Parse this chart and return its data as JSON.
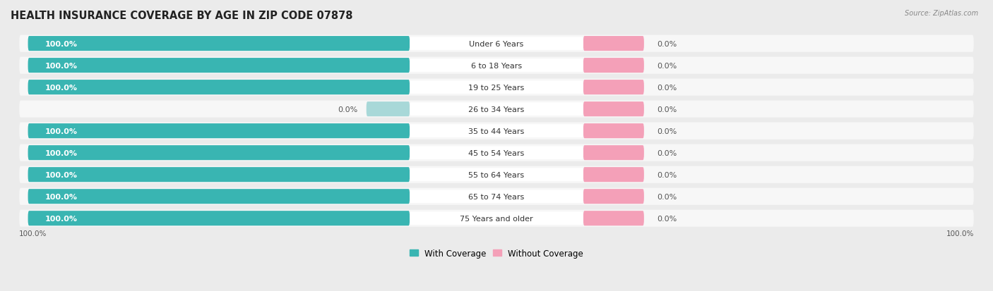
{
  "title": "HEALTH INSURANCE COVERAGE BY AGE IN ZIP CODE 07878",
  "source": "Source: ZipAtlas.com",
  "categories": [
    "Under 6 Years",
    "6 to 18 Years",
    "19 to 25 Years",
    "26 to 34 Years",
    "35 to 44 Years",
    "45 to 54 Years",
    "55 to 64 Years",
    "65 to 74 Years",
    "75 Years and older"
  ],
  "with_coverage": [
    100.0,
    100.0,
    100.0,
    0.0,
    100.0,
    100.0,
    100.0,
    100.0,
    100.0
  ],
  "without_coverage": [
    0.0,
    0.0,
    0.0,
    0.0,
    0.0,
    0.0,
    0.0,
    0.0,
    0.0
  ],
  "color_with": "#39b5b2",
  "color_with_light": "#a8d8d8",
  "color_without": "#f4a0b8",
  "background_color": "#ebebeb",
  "bar_bg_color": "#f7f7f7",
  "title_fontsize": 10.5,
  "label_fontsize": 8.0,
  "value_fontsize": 8.0,
  "legend_fontsize": 8.5,
  "x_axis_label_left": "100.0%",
  "x_axis_label_right": "100.0%"
}
